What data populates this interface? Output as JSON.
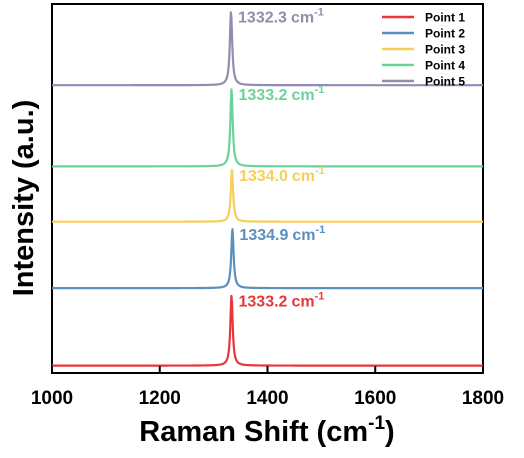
{
  "chart_data": {
    "type": "line",
    "xlabel": "Raman Shift (cm",
    "xlabel_sup": "-1",
    "xlabel_close": ")",
    "ylabel": "Intensity (a.u.)",
    "xlim": [
      1000,
      1800
    ],
    "xticks": [
      "1000",
      "1200",
      "1400",
      "1600",
      "1800"
    ],
    "ylim": [
      0,
      1
    ],
    "grid": false,
    "legend_position": "top-right",
    "unit": "cm",
    "unit_sup": "-1",
    "series": [
      {
        "name": "Point 1",
        "color": "#e8363a",
        "peak_x": 1333.2,
        "baseline": 0.02,
        "peak_top": 0.21,
        "label": "1333.2"
      },
      {
        "name": "Point 2",
        "color": "#5b8fbd",
        "peak_x": 1334.9,
        "baseline": 0.23,
        "peak_top": 0.39,
        "label": "1334.9"
      },
      {
        "name": "Point 3",
        "color": "#f5cf5a",
        "peak_x": 1334.0,
        "baseline": 0.41,
        "peak_top": 0.55,
        "label": "1334.0"
      },
      {
        "name": "Point 4",
        "color": "#6dd29a",
        "peak_x": 1333.2,
        "baseline": 0.56,
        "peak_top": 0.77,
        "label": "1333.2"
      },
      {
        "name": "Point 5",
        "color": "#8f8eae",
        "peak_x": 1332.3,
        "baseline": 0.78,
        "peak_top": 0.98,
        "label": "1332.3"
      }
    ]
  }
}
